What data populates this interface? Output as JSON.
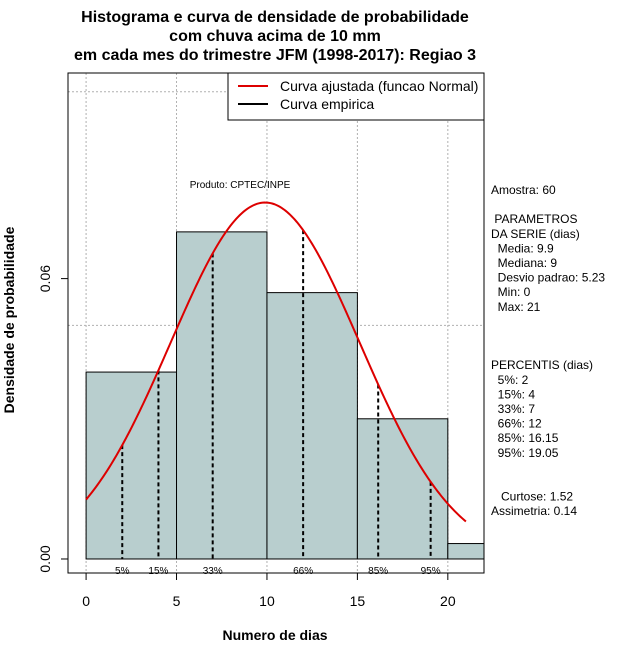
{
  "chart_data": {
    "type": "bar",
    "title_lines": [
      "Histograma e curva de densidade de probabilidade",
      "com chuva acima de 10 mm",
      "em cada mes do trimestre JFM (1998-2017): Regiao 3"
    ],
    "xlabel": "Numero de dias",
    "ylabel": "Densidade de probabilidade",
    "xlim": [
      -1,
      22
    ],
    "ylim": [
      -0.003,
      0.104
    ],
    "x_ticks": [
      0,
      5,
      10,
      15,
      20
    ],
    "x_tick_labels": [
      "0",
      "5",
      "10",
      "15",
      "20"
    ],
    "y_ticks": [
      0.0,
      0.06
    ],
    "y_tick_labels": [
      "0.00",
      "0.06"
    ],
    "grid_x": [
      0,
      5,
      10,
      15,
      20
    ],
    "grid_y": [
      0.05,
      0.1
    ],
    "bins": [
      {
        "start": 0,
        "end": 5,
        "density": 0.04
      },
      {
        "start": 5,
        "end": 10,
        "density": 0.07
      },
      {
        "start": 10,
        "end": 15,
        "density": 0.057
      },
      {
        "start": 15,
        "end": 20,
        "density": 0.03
      },
      {
        "start": 20,
        "end": 22,
        "density": 0.0033
      }
    ],
    "bar_color": "#b8cece",
    "curve_color": "#dd0000",
    "normal_fit": {
      "mean": 9.9,
      "sd": 5.23,
      "x_range": [
        0,
        21
      ]
    },
    "percentiles": [
      {
        "label": "5%",
        "x": 2
      },
      {
        "label": "15%",
        "x": 4
      },
      {
        "label": "33%",
        "x": 7
      },
      {
        "label": "66%",
        "x": 12
      },
      {
        "label": "85%",
        "x": 16.15
      },
      {
        "label": "95%",
        "x": 19.05
      }
    ],
    "legend": {
      "position": "top-right",
      "entries": [
        {
          "label": "Curva ajustada (funcao Normal)",
          "color": "#dd0000"
        },
        {
          "label": "Curva empirica",
          "color": "#000000"
        }
      ]
    },
    "annotation": "Produto: CPTEC/INPE"
  },
  "stats_panel": {
    "lines": [
      "Amostra: 60",
      "",
      " PARAMETROS",
      "DA SERIE (dias)",
      "  Media: 9.9",
      "  Mediana: 9",
      "  Desvio padrao: 5.23",
      "  Min: 0",
      "  Max: 21",
      "",
      "",
      "",
      "PERCENTIS (dias)",
      "  5%: 2",
      "  15%: 4",
      "  33%: 7",
      "  66%: 12",
      "  85%: 16.15",
      "  95%: 19.05",
      "",
      "",
      "   Curtose: 1.52",
      "Assimetria: 0.14"
    ]
  }
}
